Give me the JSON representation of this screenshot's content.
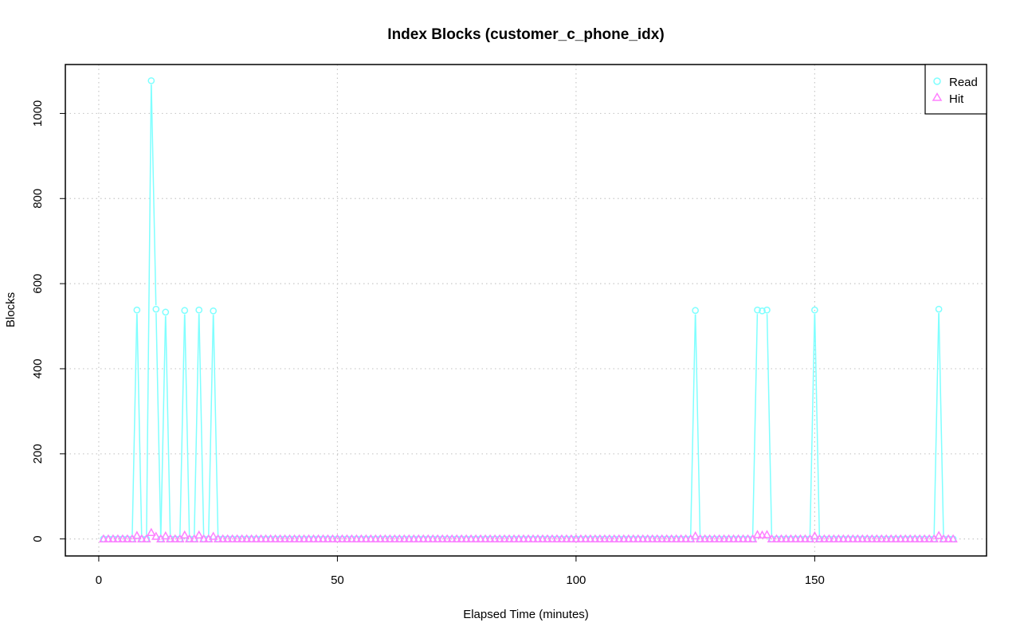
{
  "chart_data": {
    "type": "line",
    "title": "Index Blocks (customer_c_phone_idx)",
    "xlabel": "Elapsed Time (minutes)",
    "ylabel": "Blocks",
    "xlim": [
      -7,
      186
    ],
    "ylim": [
      -40,
      1115
    ],
    "xticks": [
      0,
      50,
      100,
      150
    ],
    "yticks": [
      0,
      200,
      400,
      600,
      800,
      1000
    ],
    "grid": true,
    "legend_position": "top-right",
    "x_start": 1,
    "x_end": 179,
    "series": [
      {
        "name": "Read",
        "color": "#7fffff",
        "marker": "circle",
        "default_value": 0,
        "points": [
          [
            8,
            538
          ],
          [
            11,
            1077
          ],
          [
            12,
            540
          ],
          [
            14,
            533
          ],
          [
            18,
            537
          ],
          [
            21,
            538
          ],
          [
            24,
            536
          ],
          [
            125,
            537
          ],
          [
            138,
            538
          ],
          [
            139,
            536
          ],
          [
            140,
            538
          ],
          [
            150,
            538
          ],
          [
            176,
            540
          ]
        ]
      },
      {
        "name": "Hit",
        "color": "#ff80ff",
        "marker": "triangle",
        "default_value": 0,
        "points": [
          [
            8,
            8
          ],
          [
            11,
            15
          ],
          [
            12,
            6
          ],
          [
            14,
            7
          ],
          [
            18,
            9
          ],
          [
            21,
            9
          ],
          [
            24,
            6
          ],
          [
            125,
            7
          ],
          [
            138,
            10
          ],
          [
            139,
            9
          ],
          [
            140,
            10
          ],
          [
            150,
            7
          ],
          [
            176,
            8
          ]
        ]
      }
    ]
  }
}
